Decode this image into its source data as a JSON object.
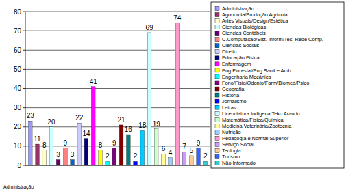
{
  "chart_data": {
    "type": "bar",
    "categories": [
      "Administração"
    ],
    "series": [
      {
        "name": "Administração",
        "color": "#9999FF",
        "values": [
          23
        ]
      },
      {
        "name": "Agonomia/Produção Agrícola",
        "color": "#993366",
        "values": [
          11
        ]
      },
      {
        "name": "Artes Visuais/Design/Estética",
        "color": "#FFFFCC",
        "values": [
          8
        ]
      },
      {
        "name": "Ciencias Biológicas",
        "color": "#CCFFFF",
        "values": [
          20
        ]
      },
      {
        "name": "Ciencias Contábeis",
        "color": "#660066",
        "values": [
          3
        ]
      },
      {
        "name": "C.Computação/Sist. Inform/Tec. Rede Comp.",
        "color": "#FF8080",
        "values": [
          9
        ]
      },
      {
        "name": "Ciencias Sociais",
        "color": "#0066CC",
        "values": [
          3
        ]
      },
      {
        "name": "Direito",
        "color": "#CCCCFF",
        "values": [
          22
        ]
      },
      {
        "name": "Educação Física",
        "color": "#000080",
        "values": [
          14
        ]
      },
      {
        "name": "Enfermagem",
        "color": "#FF00FF",
        "values": [
          41
        ]
      },
      {
        "name": "Eng Florestal/Eng Sanit e Amb",
        "color": "#FFFF00",
        "values": [
          8
        ]
      },
      {
        "name": "Engenharia Mecânica",
        "color": "#00FFFF",
        "values": [
          2
        ]
      },
      {
        "name": "Fono/Fisio/Odonto/Farm/Biomed/Psico",
        "color": "#800080",
        "values": [
          9
        ]
      },
      {
        "name": "Geografia",
        "color": "#800000",
        "values": [
          21
        ]
      },
      {
        "name": "História",
        "color": "#008080",
        "values": [
          16
        ]
      },
      {
        "name": "Jornalismo",
        "color": "#0000FF",
        "values": [
          2
        ]
      },
      {
        "name": "Letras",
        "color": "#00CCFF",
        "values": [
          18
        ]
      },
      {
        "name": "Licenciatura Indígena Teko Arandu",
        "color": "#CCFFFF",
        "values": [
          69
        ]
      },
      {
        "name": "Matemática/Física/Química",
        "color": "#CCFFCC",
        "values": [
          19
        ]
      },
      {
        "name": "Medicina Veterinária/Zootecnia",
        "color": "#FFFF99",
        "values": [
          6
        ]
      },
      {
        "name": "Nutrição",
        "color": "#99CCFF",
        "values": [
          4
        ]
      },
      {
        "name": "Pedagogia e Normal Superior",
        "color": "#FF99CC",
        "values": [
          74
        ]
      },
      {
        "name": "Serviço Social",
        "color": "#CC99FF",
        "values": [
          7
        ]
      },
      {
        "name": "Teologia",
        "color": "#FFCC99",
        "values": [
          5
        ]
      },
      {
        "name": "Turismo",
        "color": "#3366FF",
        "values": [
          9
        ]
      },
      {
        "name": "Não Informado",
        "color": "#33CCCC",
        "values": [
          2
        ]
      }
    ],
    "ylim": [
      0,
      80
    ],
    "yticks": [
      0,
      10,
      20,
      30,
      40,
      50,
      60,
      70,
      80
    ],
    "grid": true,
    "data_labels": true,
    "legend": "right"
  }
}
